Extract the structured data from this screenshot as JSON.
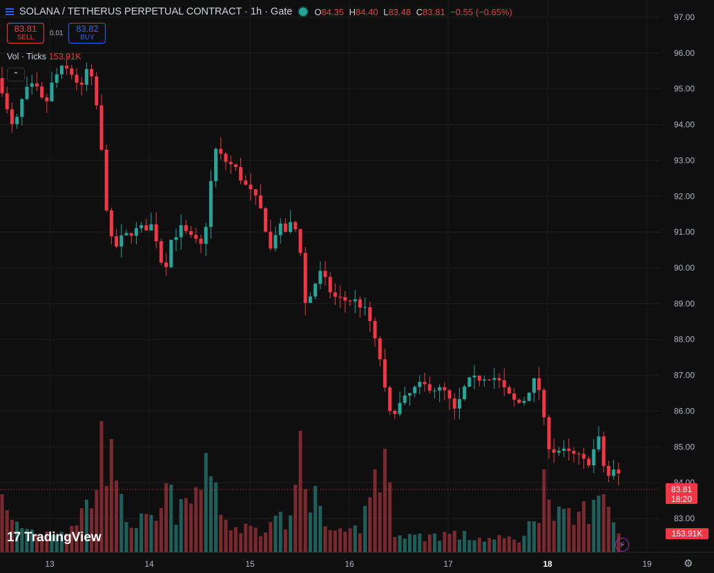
{
  "header": {
    "symbol": "SOLANA / TETHERUS PERPETUAL CONTRACT · 1h · Gate",
    "o_label": "O",
    "o": "84.35",
    "h_label": "H",
    "h": "84.40",
    "l_label": "L",
    "l": "83.48",
    "c_label": "C",
    "c": "83.81",
    "change": "−0.55 (−0.65%)"
  },
  "trade": {
    "sell_price": "83.81",
    "sell_label": "SELL",
    "spread": "0.01",
    "buy_price": "83.82",
    "buy_label": "BUY"
  },
  "volume_legend": {
    "label": "Vol · Ticks",
    "value": "153.91K"
  },
  "branding": {
    "logo_mark": "17",
    "logo_text": "TradingView"
  },
  "icons": {
    "menu": "hamburger-icon",
    "status": "market-status-dot-icon",
    "collapse": "chevron-up-icon",
    "settings": "gear-icon",
    "bolt": "lightning-icon"
  },
  "colors": {
    "up": "#26a69a",
    "down": "#f23645",
    "background": "#0f0f0f",
    "grid": "#1e1e1e",
    "text": "#d1d4dc"
  },
  "chart_data": {
    "type": "candlestick",
    "x_tick_labels": [
      "13",
      "14",
      "15",
      "16",
      "17",
      "18",
      "19"
    ],
    "y_tick_labels": [
      "83.00",
      "84.00",
      "85.00",
      "86.00",
      "87.00",
      "88.00",
      "89.00",
      "90.00",
      "91.00",
      "92.00",
      "93.00",
      "94.00",
      "95.00",
      "96.00",
      "97.00"
    ],
    "ylim": [
      82.5,
      97.3
    ],
    "last_price": "83.81",
    "countdown": "18:20",
    "volume_last": "153.91K",
    "price_path": [
      [
        0,
        95.3
      ],
      [
        8,
        94.5
      ],
      [
        20,
        93.8
      ],
      [
        35,
        94.9
      ],
      [
        50,
        95.1
      ],
      [
        65,
        94.5
      ],
      [
        78,
        95.3
      ],
      [
        92,
        95.6
      ],
      [
        105,
        95.4
      ],
      [
        118,
        95.0
      ],
      [
        128,
        95.7
      ],
      [
        135,
        95.0
      ],
      [
        143,
        94.2
      ],
      [
        150,
        92.5
      ],
      [
        158,
        91.0
      ],
      [
        165,
        90.5
      ],
      [
        175,
        90.8
      ],
      [
        190,
        91.0
      ],
      [
        205,
        91.1
      ],
      [
        222,
        91.2
      ],
      [
        232,
        90.3
      ],
      [
        238,
        89.9
      ],
      [
        248,
        90.8
      ],
      [
        262,
        91.1
      ],
      [
        278,
        90.8
      ],
      [
        292,
        90.6
      ],
      [
        300,
        91.4
      ],
      [
        306,
        92.5
      ],
      [
        312,
        93.3
      ],
      [
        325,
        93.0
      ],
      [
        340,
        92.8
      ],
      [
        355,
        92.3
      ],
      [
        368,
        92.0
      ],
      [
        380,
        91.5
      ],
      [
        392,
        90.5
      ],
      [
        402,
        91.2
      ],
      [
        412,
        91.0
      ],
      [
        425,
        91.3
      ],
      [
        435,
        90.5
      ],
      [
        442,
        89.0
      ],
      [
        452,
        89.3
      ],
      [
        462,
        89.9
      ],
      [
        472,
        89.6
      ],
      [
        482,
        89.2
      ],
      [
        496,
        89.1
      ],
      [
        512,
        89.1
      ],
      [
        526,
        88.9
      ],
      [
        536,
        88.5
      ],
      [
        542,
        88.0
      ],
      [
        550,
        87.5
      ],
      [
        556,
        86.7
      ],
      [
        564,
        85.9
      ],
      [
        575,
        86.1
      ],
      [
        590,
        86.4
      ],
      [
        605,
        86.7
      ],
      [
        620,
        86.7
      ],
      [
        635,
        86.6
      ],
      [
        648,
        86.5
      ],
      [
        656,
        85.9
      ],
      [
        666,
        86.3
      ],
      [
        676,
        86.8
      ],
      [
        690,
        86.9
      ],
      [
        706,
        87.0
      ],
      [
        720,
        86.9
      ],
      [
        730,
        86.6
      ],
      [
        742,
        86.3
      ],
      [
        756,
        86.2
      ],
      [
        766,
        86.6
      ],
      [
        776,
        86.9
      ],
      [
        784,
        86.4
      ],
      [
        790,
        85.3
      ],
      [
        798,
        84.9
      ],
      [
        810,
        84.9
      ],
      [
        825,
        84.8
      ],
      [
        840,
        84.7
      ],
      [
        850,
        84.5
      ],
      [
        858,
        84.8
      ],
      [
        866,
        85.3
      ],
      [
        872,
        84.7
      ],
      [
        878,
        84.1
      ],
      [
        886,
        84.3
      ],
      [
        894,
        84.35
      ],
      [
        902,
        83.81
      ]
    ],
    "volume_path": [
      [
        0,
        0.35
      ],
      [
        20,
        0.22
      ],
      [
        60,
        0.15
      ],
      [
        100,
        0.2
      ],
      [
        130,
        0.4
      ],
      [
        140,
        0.55
      ],
      [
        150,
        0.9
      ],
      [
        158,
        0.7
      ],
      [
        170,
        0.4
      ],
      [
        190,
        0.25
      ],
      [
        230,
        0.22
      ],
      [
        238,
        0.5
      ],
      [
        260,
        0.3
      ],
      [
        300,
        0.6
      ],
      [
        312,
        0.55
      ],
      [
        330,
        0.2
      ],
      [
        380,
        0.18
      ],
      [
        390,
        0.35
      ],
      [
        420,
        0.2
      ],
      [
        438,
        0.9
      ],
      [
        450,
        0.5
      ],
      [
        470,
        0.2
      ],
      [
        500,
        0.12
      ],
      [
        520,
        0.2
      ],
      [
        545,
        0.55
      ],
      [
        558,
        0.7
      ],
      [
        570,
        0.2
      ],
      [
        600,
        0.12
      ],
      [
        650,
        0.15
      ],
      [
        680,
        0.12
      ],
      [
        720,
        0.1
      ],
      [
        760,
        0.12
      ],
      [
        786,
        0.45
      ],
      [
        800,
        0.3
      ],
      [
        830,
        0.25
      ],
      [
        860,
        0.4
      ],
      [
        880,
        0.5
      ],
      [
        895,
        0.15
      ],
      [
        902,
        0.1
      ]
    ],
    "volume_peaks": [
      [
        6,
        0.42
      ],
      [
        148,
        0.95
      ],
      [
        158,
        0.82
      ],
      [
        300,
        0.72
      ],
      [
        308,
        0.55
      ],
      [
        436,
        0.88
      ],
      [
        546,
        0.6
      ],
      [
        558,
        0.75
      ],
      [
        786,
        0.6
      ],
      [
        862,
        0.38
      ],
      [
        872,
        0.42
      ],
      [
        880,
        0.33
      ]
    ]
  }
}
